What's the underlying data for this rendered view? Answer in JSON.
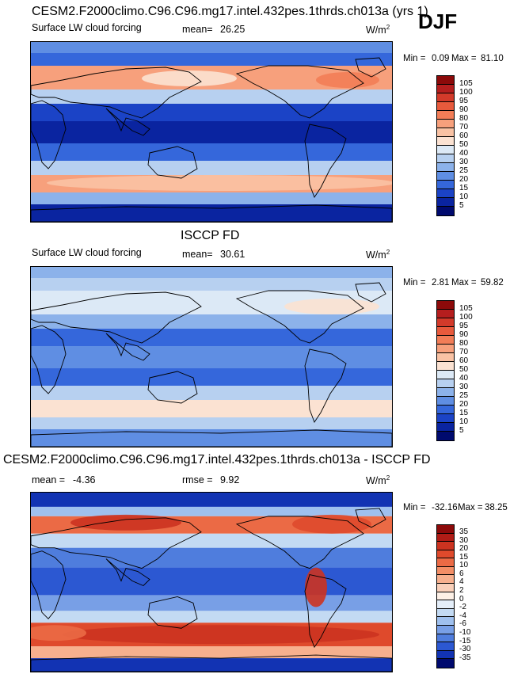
{
  "season": "DJF",
  "unit_base": "W/m",
  "unit_exp": "2",
  "chart_data": [
    {
      "type": "heatmap",
      "title": "CESM2.F2000climo.C96.C96.mg17.intel.432pes.1thrds.ch013a (yrs 1)",
      "subtitle": "Surface LW cloud forcing",
      "stat_label": "mean=",
      "stat_value": "26.25",
      "min_label": "Min =",
      "min": "0.09",
      "max_label": "Max =",
      "max": "81.10",
      "levels": [
        "105",
        "100",
        "95",
        "90",
        "80",
        "70",
        "60",
        "50",
        "40",
        "30",
        "25",
        "20",
        "15",
        "10",
        "5"
      ],
      "colors": [
        "#8c0a0a",
        "#b51e1e",
        "#d33a2a",
        "#e85a3c",
        "#f27d57",
        "#f7a07c",
        "#f9c2a4",
        "#fbe2d2",
        "#dce9f6",
        "#b7d0f0",
        "#8cb2ea",
        "#5f8ee3",
        "#3567db",
        "#1b43c6",
        "#0a24a0",
        "#000a6e"
      ]
    },
    {
      "type": "heatmap",
      "title": "ISCCP FD",
      "subtitle": "Surface LW cloud forcing",
      "stat_label": "mean=",
      "stat_value": "30.61",
      "min_label": "Min =",
      "min": "2.81",
      "max_label": "Max =",
      "max": "59.82",
      "levels": [
        "105",
        "100",
        "95",
        "90",
        "80",
        "70",
        "60",
        "50",
        "40",
        "30",
        "25",
        "20",
        "15",
        "10",
        "5"
      ],
      "colors": [
        "#8c0a0a",
        "#b51e1e",
        "#d33a2a",
        "#e85a3c",
        "#f27d57",
        "#f7a07c",
        "#f9c2a4",
        "#fbe2d2",
        "#dce9f6",
        "#b7d0f0",
        "#8cb2ea",
        "#5f8ee3",
        "#3567db",
        "#1b43c6",
        "#0a24a0",
        "#000a6e"
      ]
    },
    {
      "type": "heatmap",
      "title": "CESM2.F2000climo.C96.C96.mg17.intel.432pes.1thrds.ch013a - ISCCP FD",
      "stat1_label": "mean =",
      "stat1_value": "-4.36",
      "stat2_label": "rmse =",
      "stat2_value": "9.92",
      "min_label": "Min =",
      "min": "-32.16",
      "max_label": "Max =",
      "max": "38.25",
      "levels": [
        "35",
        "30",
        "20",
        "15",
        "10",
        "6",
        "4",
        "2",
        "0",
        "-2",
        "-4",
        "-6",
        "-10",
        "-15",
        "-30",
        "-35"
      ],
      "colors": [
        "#8c0a0a",
        "#b01c16",
        "#cc3320",
        "#df4a2c",
        "#eb6a45",
        "#f38e66",
        "#f7b08e",
        "#f9d0ba",
        "#fdf0e6",
        "#e4eef9",
        "#c3daf3",
        "#9fc0ee",
        "#789fe6",
        "#4f7ddd",
        "#2c58d2",
        "#1233b3",
        "#000a6e"
      ]
    }
  ]
}
